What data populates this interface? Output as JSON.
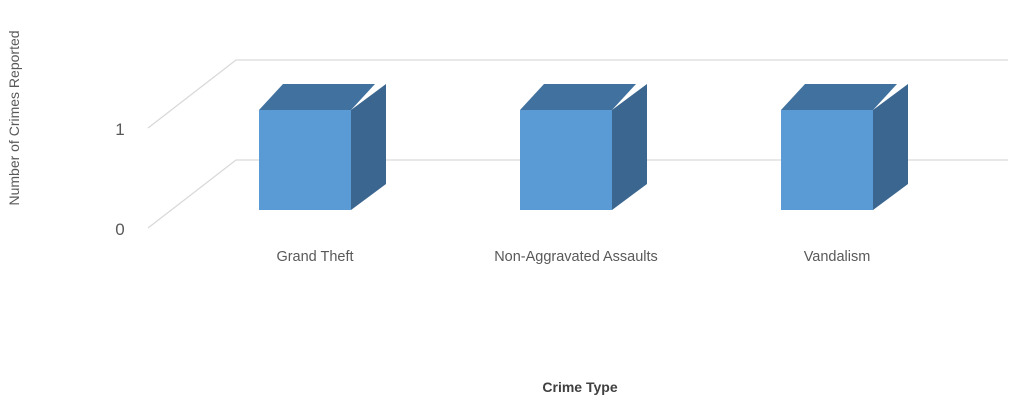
{
  "chart_data": {
    "type": "bar",
    "three_d": true,
    "categories": [
      "Grand Theft",
      "Non-Aggravated Assaults",
      "Vandalism"
    ],
    "values": [
      1,
      1,
      1
    ],
    "xlabel": "Crime Type",
    "ylabel": "Number of Crimes Reported",
    "ylim": [
      0,
      1
    ],
    "yticks": [
      0,
      1
    ],
    "grid": true,
    "legend": "none",
    "colors": {
      "bar_front": "#5b9bd5",
      "bar_top": "#41729f",
      "bar_side": "#3b668f",
      "gridline": "#d9d9d9",
      "tick_text": "#595959",
      "axis_title": "#404040"
    }
  }
}
